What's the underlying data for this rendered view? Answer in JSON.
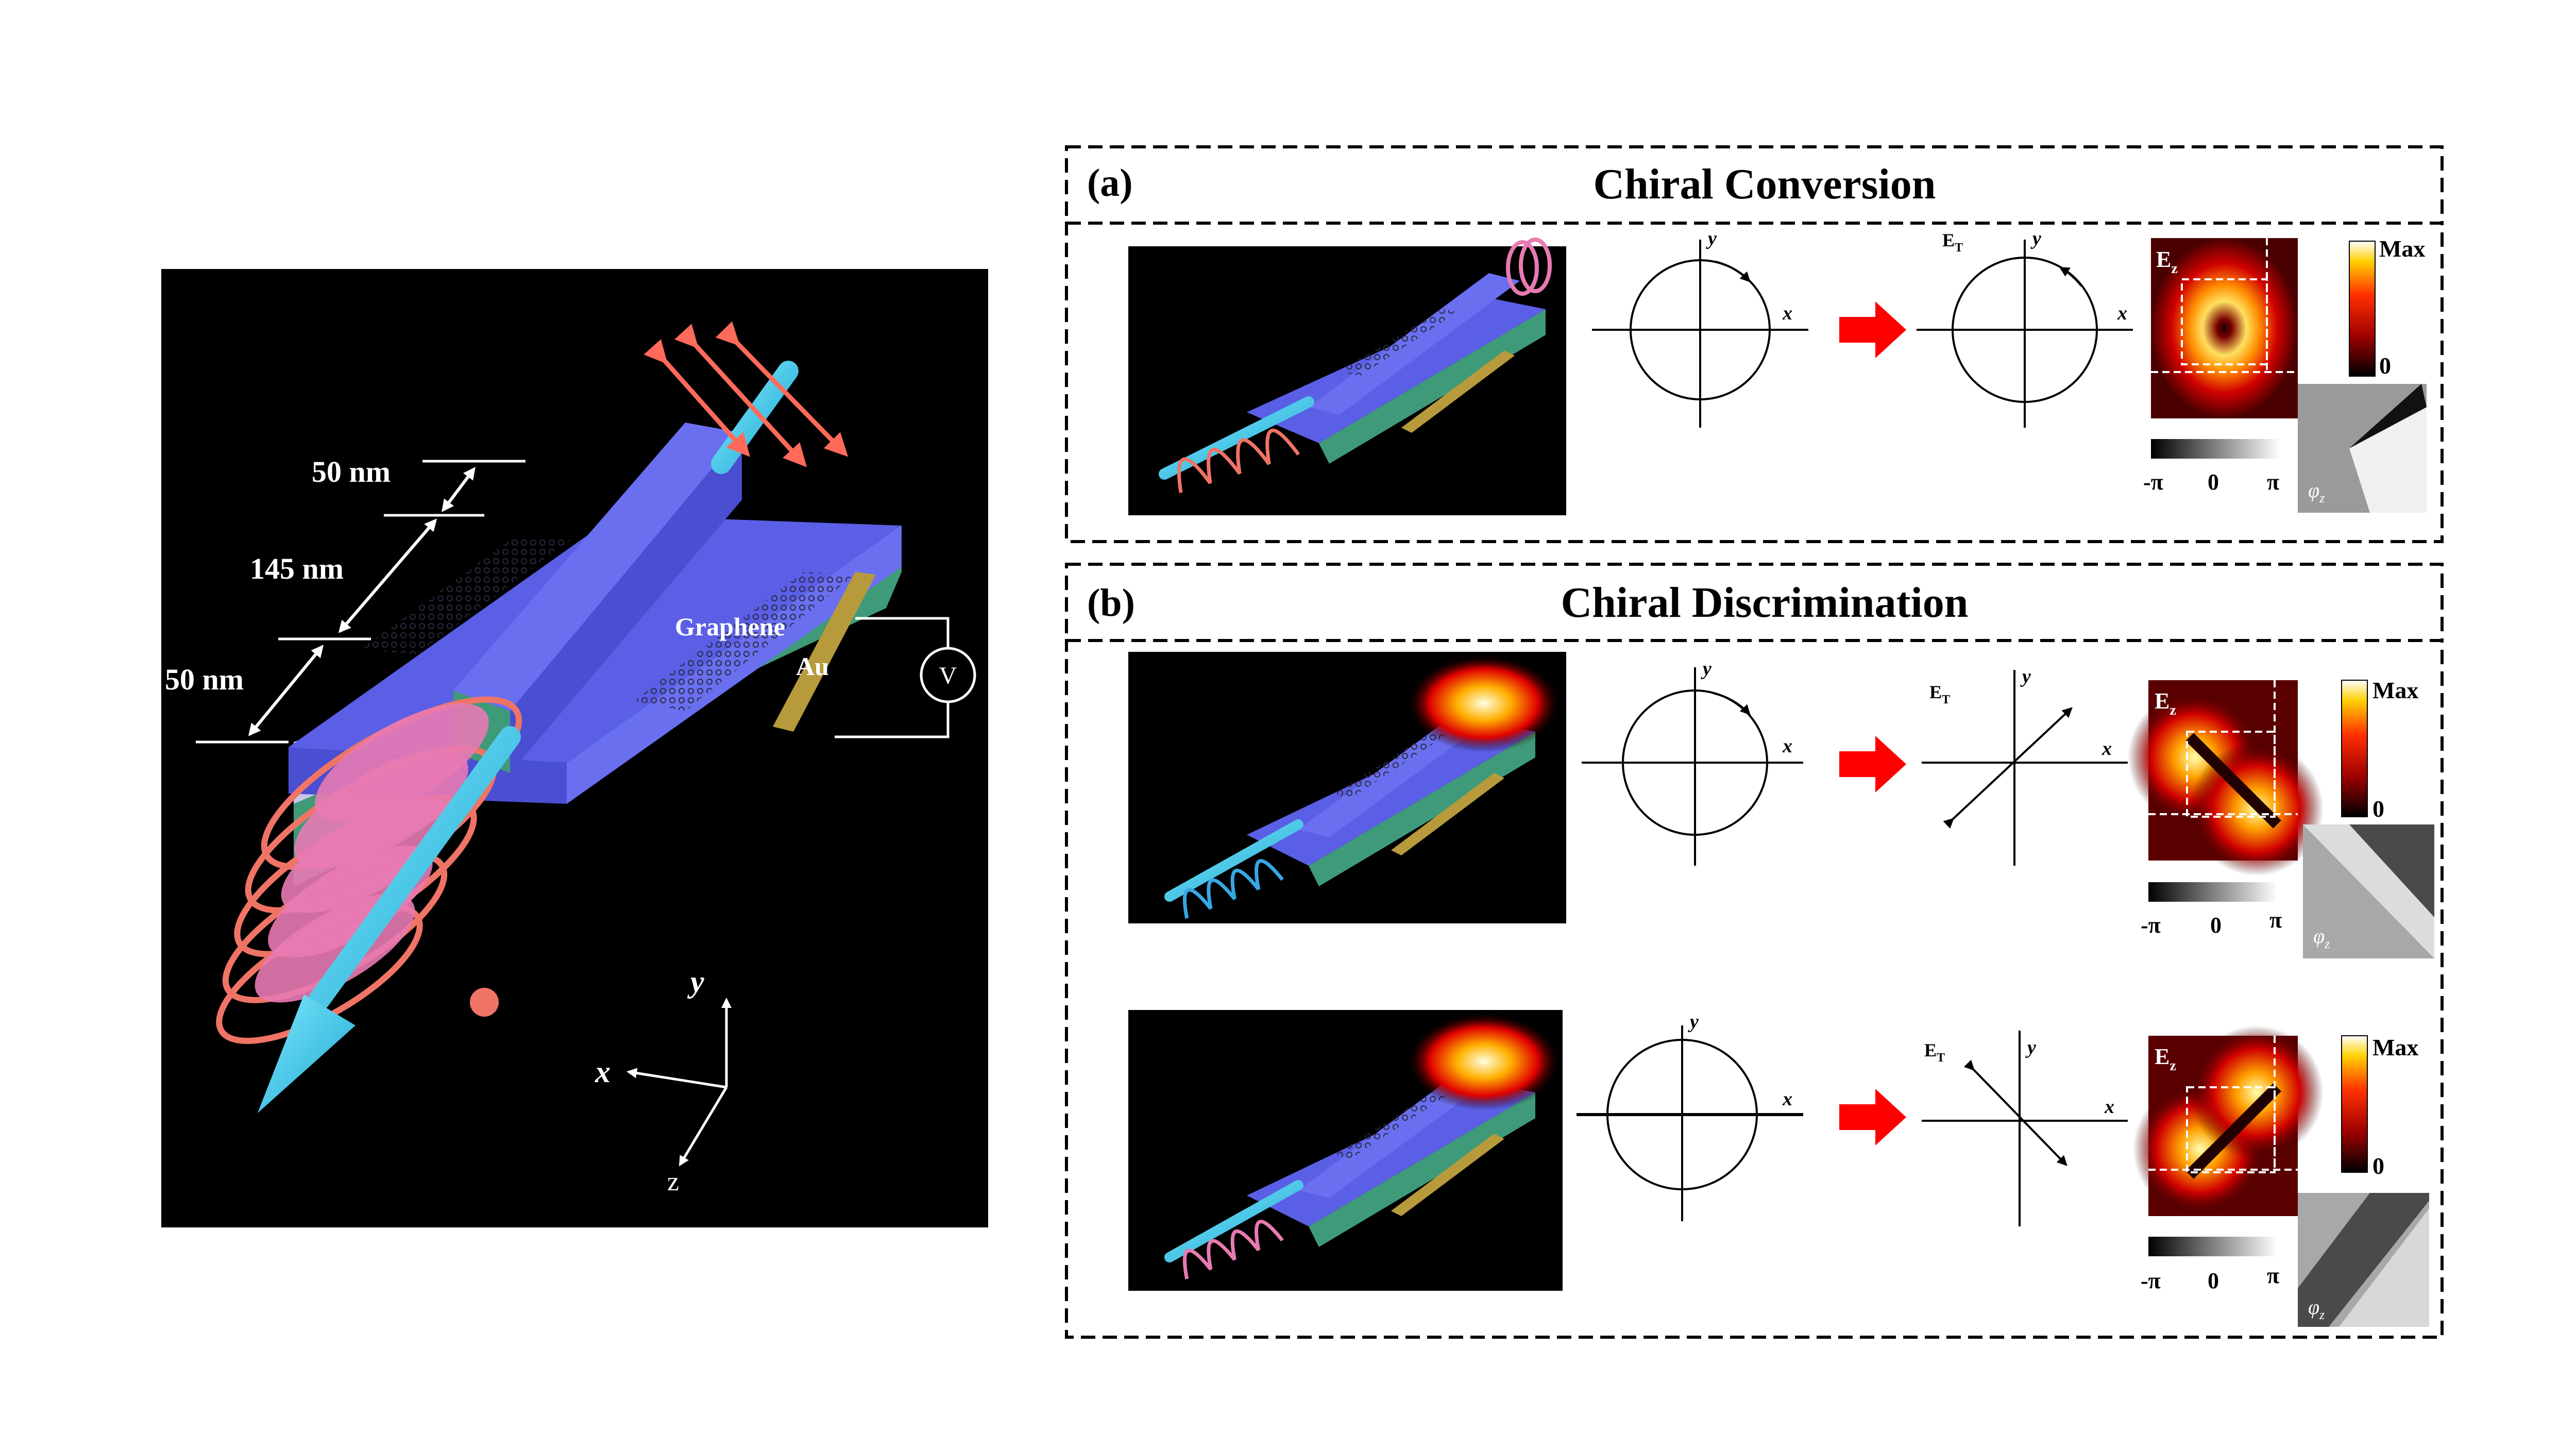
{
  "device": {
    "dims": {
      "top": "50 nm",
      "middle": "145 nm",
      "bottom": "50 nm"
    },
    "labels": {
      "graphene": "Graphene",
      "au": "Au",
      "voltmeter": "V"
    },
    "axes": {
      "y": "y",
      "x": "x",
      "z": "z"
    }
  },
  "panel_a": {
    "letter": "(a)",
    "title": "Chiral Conversion",
    "row": {
      "in_y": "y",
      "in_x": "x",
      "out_label": "E",
      "out_sub": "T",
      "out_y": "y",
      "out_x": "x",
      "map_label": "E",
      "map_sub": "z",
      "max": "Max",
      "zero": "0",
      "phase_min": "-π",
      "phase_mid": "0",
      "phase_max": "π",
      "phase_label": "φ",
      "phase_sub": "z"
    }
  },
  "panel_b": {
    "letter": "(b)",
    "title": "Chiral Discrimination",
    "row1": {
      "in_y": "y",
      "in_x": "x",
      "out_label": "E",
      "out_sub": "T",
      "out_y": "y",
      "out_x": "x",
      "map_label": "E",
      "map_sub": "z",
      "max": "Max",
      "zero": "0",
      "phase_min": "-π",
      "phase_mid": "0",
      "phase_max": "π",
      "phase_label": "φ",
      "phase_sub": "z"
    },
    "row2": {
      "in_y": "y",
      "in_x": "x",
      "out_label": "E",
      "out_sub": "T",
      "out_y": "y",
      "out_x": "x",
      "map_label": "E",
      "map_sub": "z",
      "max": "Max",
      "zero": "0",
      "phase_min": "-π",
      "phase_mid": "0",
      "phase_max": "π",
      "phase_label": "φ",
      "phase_sub": "z"
    }
  },
  "colors": {
    "background": "#ffffff",
    "device_bg": "#000000",
    "waveguide": "#5b5fe6",
    "substrate": "#3f9a7a",
    "gold": "#b79a3c",
    "beam": "#35c6e6",
    "helix": "#ef7466",
    "vortex": "#e87ab2",
    "arrow_red": "#ff0000"
  }
}
